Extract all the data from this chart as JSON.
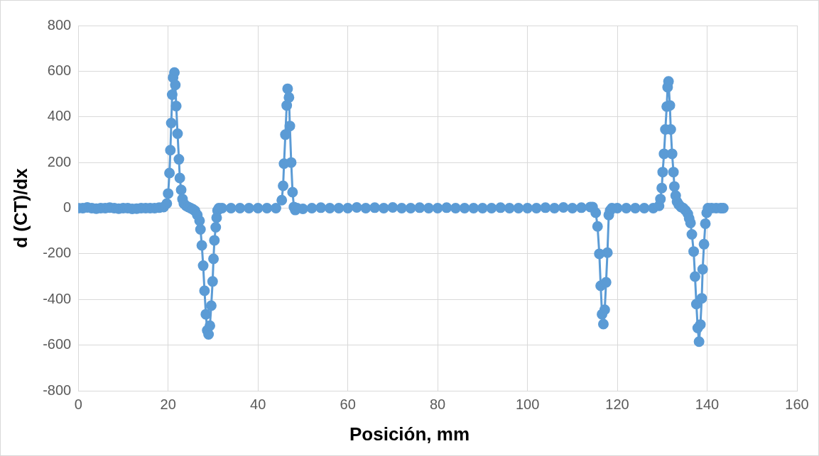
{
  "chart_data": {
    "type": "line",
    "xlabel": "Posición, mm",
    "ylabel": "d (CT)/dx",
    "marker": "circle",
    "grid": true,
    "legend": false,
    "xlim": [
      0,
      160
    ],
    "xticks": [
      0,
      20,
      40,
      60,
      80,
      100,
      120,
      140,
      160
    ],
    "ylim": [
      -800,
      800
    ],
    "yticks": [
      -800,
      -600,
      -400,
      -200,
      0,
      200,
      400,
      600,
      800
    ],
    "series": [
      {
        "color": "#5b9bd5",
        "x": [
          0,
          1,
          2,
          3,
          4,
          5,
          6,
          7,
          8,
          9,
          10,
          11,
          12,
          13,
          14,
          15,
          16,
          17,
          18,
          19,
          19.7,
          20.0,
          20.3,
          20.5,
          20.7,
          20.9,
          21.1,
          21.4,
          21.6,
          21.8,
          22.1,
          22.4,
          22.6,
          22.9,
          23.2,
          23.5,
          24,
          24.5,
          25,
          25.5,
          26,
          26.5,
          27,
          27.2,
          27.5,
          27.8,
          28.1,
          28.4,
          28.7,
          29.0,
          29.3,
          29.6,
          29.9,
          30.1,
          30.3,
          30.6,
          30.8,
          31.0,
          31.3,
          32,
          34,
          36,
          38,
          40,
          42,
          44,
          45.3,
          45.6,
          45.8,
          46.1,
          46.4,
          46.6,
          46.9,
          47.1,
          47.4,
          47.7,
          48.0,
          48.3,
          48.7,
          50,
          52,
          54,
          56,
          58,
          60,
          62,
          64,
          66,
          68,
          70,
          72,
          74,
          76,
          78,
          80,
          82,
          84,
          86,
          88,
          90,
          92,
          94,
          96,
          98,
          100,
          102,
          104,
          106,
          108,
          110,
          112,
          114,
          114.5,
          115.2,
          115.6,
          116,
          116.3,
          116.6,
          116.9,
          117.2,
          117.5,
          117.8,
          118.1,
          118.4,
          118.8,
          120,
          122,
          124,
          126,
          128,
          129.3,
          129.6,
          129.9,
          130.1,
          130.4,
          130.7,
          131.0,
          131.2,
          131.4,
          131.7,
          131.9,
          132.2,
          132.5,
          132.7,
          133,
          133.3,
          133.7,
          134.2,
          134.7,
          135.2,
          135.7,
          136.0,
          136.3,
          136.6,
          137.0,
          137.3,
          137.6,
          137.9,
          138.2,
          138.5,
          138.8,
          139.0,
          139.3,
          139.6,
          139.9,
          140.2,
          141,
          142,
          143,
          143.6
        ],
        "values": [
          0,
          0,
          3,
          0,
          -2,
          0,
          0,
          2,
          0,
          -2,
          0,
          0,
          -3,
          -2,
          0,
          0,
          0,
          0,
          2,
          5,
          20,
          64,
          154,
          254,
          373,
          497,
          572,
          594,
          540,
          447,
          326,
          214,
          132,
          80,
          40,
          20,
          10,
          5,
          0,
          -5,
          -12,
          -30,
          -55,
          -93,
          -163,
          -252,
          -362,
          -465,
          -535,
          -553,
          -515,
          -427,
          -321,
          -222,
          -141,
          -84,
          -42,
          -10,
          0,
          0,
          0,
          0,
          0,
          0,
          0,
          0,
          35,
          98,
          195,
          322,
          450,
          523,
          485,
          360,
          200,
          70,
          5,
          -8,
          0,
          -3,
          0,
          2,
          0,
          0,
          0,
          3,
          0,
          2,
          0,
          3,
          0,
          0,
          2,
          0,
          0,
          2,
          0,
          0,
          0,
          0,
          0,
          2,
          0,
          0,
          0,
          0,
          2,
          0,
          3,
          0,
          2,
          5,
          5,
          -20,
          -80,
          -200,
          -340,
          -465,
          -508,
          -445,
          -325,
          -195,
          -30,
          -10,
          0,
          0,
          0,
          0,
          0,
          0,
          10,
          40,
          88,
          158,
          238,
          345,
          445,
          530,
          555,
          450,
          345,
          238,
          158,
          95,
          55,
          28,
          15,
          5,
          0,
          -10,
          -25,
          -45,
          -65,
          -115,
          -190,
          -300,
          -420,
          -525,
          -585,
          -510,
          -395,
          -268,
          -158,
          -68,
          -20,
          0,
          0,
          0,
          0,
          0
        ]
      }
    ]
  }
}
